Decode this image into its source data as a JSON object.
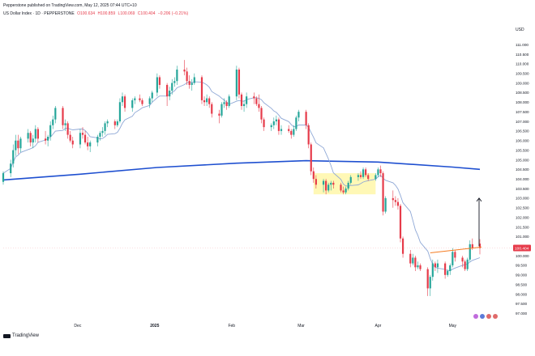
{
  "header": {
    "attribution": "Pepperstone published on TradingView.com, May 12, 2025 07:44 UTC+10",
    "symbol": "US Dollar Index · 1D · PEPPERSTONE",
    "ohlc": {
      "open": "O100.634",
      "high": "H100.859",
      "low": "L100.069",
      "close": "C100.404",
      "change": "−0.206 (−0.21%)"
    }
  },
  "branding": {
    "logo_text": "TradingView"
  },
  "colors": {
    "bull": "#26a69a",
    "bear": "#e63b4a",
    "ma_fast": "#8fa8d6",
    "ma_slow": "#1e4fd0",
    "resistance": "#f57c22",
    "range_box": "#fff59d",
    "price_tag": "#e63b4a"
  },
  "chart_data": {
    "type": "candlestick",
    "currency": "USD",
    "y_ticks": [
      "111.000",
      "110.500",
      "110.000",
      "109.500",
      "109.000",
      "108.500",
      "108.000",
      "107.500",
      "107.000",
      "106.500",
      "106.000",
      "105.500",
      "105.000",
      "104.500",
      "104.000",
      "103.500",
      "103.000",
      "102.500",
      "102.000",
      "101.500",
      "101.000",
      "100.500",
      "100.000",
      "99.500",
      "99.000",
      "98.500",
      "98.000",
      "97.500",
      "97.000"
    ],
    "ylim": [
      96.8,
      111.3
    ],
    "x_labels": [
      "Dec",
      "2025",
      "Feb",
      "Mar",
      "Apr",
      "May"
    ],
    "current_price": "100.404",
    "candles": [
      {
        "d": "2024-11-01",
        "o": 103.85,
        "h": 104.4,
        "l": 103.7,
        "c": 104.3
      },
      {
        "d": "2024-11-04",
        "o": 104.3,
        "h": 105.0,
        "l": 104.1,
        "c": 104.8
      },
      {
        "d": "2024-11-05",
        "o": 104.8,
        "h": 105.8,
        "l": 104.6,
        "c": 105.5
      },
      {
        "d": "2024-11-06",
        "o": 105.5,
        "h": 106.3,
        "l": 105.2,
        "c": 106.0
      },
      {
        "d": "2024-11-07",
        "o": 106.0,
        "h": 106.3,
        "l": 105.3,
        "c": 105.6
      },
      {
        "d": "2024-11-08",
        "o": 105.6,
        "h": 106.2,
        "l": 105.4,
        "c": 106.1
      },
      {
        "d": "2024-11-11",
        "o": 106.1,
        "h": 106.6,
        "l": 105.9,
        "c": 106.4
      },
      {
        "d": "2024-11-12",
        "o": 106.4,
        "h": 106.5,
        "l": 105.7,
        "c": 105.9
      },
      {
        "d": "2024-11-13",
        "o": 105.9,
        "h": 106.3,
        "l": 105.6,
        "c": 106.1
      },
      {
        "d": "2024-11-14",
        "o": 106.1,
        "h": 106.8,
        "l": 105.9,
        "c": 106.6
      },
      {
        "d": "2024-11-15",
        "o": 106.6,
        "h": 106.7,
        "l": 105.9,
        "c": 106.1
      },
      {
        "d": "2024-11-18",
        "o": 106.1,
        "h": 106.5,
        "l": 105.8,
        "c": 106.0
      },
      {
        "d": "2024-11-19",
        "o": 106.0,
        "h": 106.3,
        "l": 105.7,
        "c": 106.2
      },
      {
        "d": "2024-11-20",
        "o": 106.2,
        "h": 107.0,
        "l": 106.0,
        "c": 106.8
      },
      {
        "d": "2024-11-21",
        "o": 106.8,
        "h": 107.3,
        "l": 106.6,
        "c": 107.1
      },
      {
        "d": "2024-11-22",
        "o": 107.1,
        "h": 107.8,
        "l": 106.9,
        "c": 107.7
      },
      {
        "d": "2024-11-25",
        "o": 107.7,
        "h": 107.8,
        "l": 106.6,
        "c": 106.8
      },
      {
        "d": "2024-11-26",
        "o": 106.8,
        "h": 107.1,
        "l": 106.5,
        "c": 106.9
      },
      {
        "d": "2024-11-27",
        "o": 106.9,
        "h": 107.0,
        "l": 106.1,
        "c": 106.3
      },
      {
        "d": "2024-11-28",
        "o": 106.3,
        "h": 106.5,
        "l": 105.9,
        "c": 106.0
      },
      {
        "d": "2024-11-29",
        "o": 106.0,
        "h": 106.2,
        "l": 105.6,
        "c": 105.8
      },
      {
        "d": "2024-12-02",
        "o": 105.8,
        "h": 106.6,
        "l": 105.6,
        "c": 106.4
      },
      {
        "d": "2024-12-03",
        "o": 106.4,
        "h": 106.7,
        "l": 106.1,
        "c": 106.3
      },
      {
        "d": "2024-12-04",
        "o": 106.3,
        "h": 106.5,
        "l": 105.8,
        "c": 105.9
      },
      {
        "d": "2024-12-05",
        "o": 105.9,
        "h": 106.2,
        "l": 105.5,
        "c": 105.7
      },
      {
        "d": "2024-12-06",
        "o": 105.7,
        "h": 106.0,
        "l": 105.4,
        "c": 105.9
      },
      {
        "d": "2024-12-09",
        "o": 105.9,
        "h": 106.3,
        "l": 105.7,
        "c": 106.2
      },
      {
        "d": "2024-12-10",
        "o": 106.2,
        "h": 106.5,
        "l": 106.0,
        "c": 106.4
      },
      {
        "d": "2024-12-11",
        "o": 106.4,
        "h": 106.7,
        "l": 106.2,
        "c": 106.5
      },
      {
        "d": "2024-12-12",
        "o": 106.5,
        "h": 107.0,
        "l": 106.3,
        "c": 106.9
      },
      {
        "d": "2024-12-13",
        "o": 106.9,
        "h": 107.1,
        "l": 106.7,
        "c": 107.0
      },
      {
        "d": "2024-12-16",
        "o": 107.0,
        "h": 107.1,
        "l": 106.6,
        "c": 106.8
      },
      {
        "d": "2024-12-17",
        "o": 106.8,
        "h": 107.1,
        "l": 106.7,
        "c": 107.0
      },
      {
        "d": "2024-12-18",
        "o": 107.0,
        "h": 108.2,
        "l": 106.9,
        "c": 108.0
      },
      {
        "d": "2024-12-19",
        "o": 108.0,
        "h": 108.5,
        "l": 107.8,
        "c": 108.3
      },
      {
        "d": "2024-12-20",
        "o": 108.3,
        "h": 108.4,
        "l": 107.5,
        "c": 107.7
      },
      {
        "d": "2024-12-23",
        "o": 107.7,
        "h": 108.2,
        "l": 107.5,
        "c": 108.1
      },
      {
        "d": "2024-12-24",
        "o": 108.1,
        "h": 108.3,
        "l": 107.9,
        "c": 108.2
      },
      {
        "d": "2024-12-26",
        "o": 108.2,
        "h": 108.4,
        "l": 108.0,
        "c": 108.1
      },
      {
        "d": "2024-12-27",
        "o": 108.1,
        "h": 108.2,
        "l": 107.8,
        "c": 107.9
      },
      {
        "d": "2024-12-30",
        "o": 107.9,
        "h": 108.3,
        "l": 107.7,
        "c": 108.2
      },
      {
        "d": "2024-12-31",
        "o": 108.2,
        "h": 108.6,
        "l": 108.0,
        "c": 108.5
      },
      {
        "d": "2025-01-02",
        "o": 108.5,
        "h": 109.5,
        "l": 108.3,
        "c": 109.3
      },
      {
        "d": "2025-01-03",
        "o": 109.3,
        "h": 109.4,
        "l": 108.7,
        "c": 108.9
      },
      {
        "d": "2025-01-06",
        "o": 108.9,
        "h": 109.0,
        "l": 107.8,
        "c": 108.3
      },
      {
        "d": "2025-01-07",
        "o": 108.3,
        "h": 108.8,
        "l": 108.1,
        "c": 108.6
      },
      {
        "d": "2025-01-08",
        "o": 108.6,
        "h": 109.2,
        "l": 108.4,
        "c": 109.0
      },
      {
        "d": "2025-01-09",
        "o": 109.0,
        "h": 109.3,
        "l": 108.8,
        "c": 109.1
      },
      {
        "d": "2025-01-10",
        "o": 109.1,
        "h": 109.9,
        "l": 108.9,
        "c": 109.7
      },
      {
        "d": "2025-01-13",
        "o": 109.7,
        "h": 110.2,
        "l": 109.4,
        "c": 109.6
      },
      {
        "d": "2025-01-14",
        "o": 109.6,
        "h": 109.8,
        "l": 108.9,
        "c": 109.1
      },
      {
        "d": "2025-01-15",
        "o": 109.1,
        "h": 109.4,
        "l": 108.7,
        "c": 108.9
      },
      {
        "d": "2025-01-16",
        "o": 108.9,
        "h": 109.2,
        "l": 108.6,
        "c": 109.0
      },
      {
        "d": "2025-01-17",
        "o": 109.0,
        "h": 109.5,
        "l": 108.9,
        "c": 109.3
      },
      {
        "d": "2025-01-20",
        "o": 109.3,
        "h": 109.4,
        "l": 107.9,
        "c": 108.1
      },
      {
        "d": "2025-01-21",
        "o": 108.1,
        "h": 108.3,
        "l": 107.8,
        "c": 108.0
      },
      {
        "d": "2025-01-22",
        "o": 108.0,
        "h": 108.4,
        "l": 107.8,
        "c": 108.2
      },
      {
        "d": "2025-01-23",
        "o": 108.2,
        "h": 108.3,
        "l": 107.7,
        "c": 107.9
      },
      {
        "d": "2025-01-24",
        "o": 107.9,
        "h": 108.0,
        "l": 107.2,
        "c": 107.4
      },
      {
        "d": "2025-01-27",
        "o": 107.4,
        "h": 107.6,
        "l": 106.9,
        "c": 107.3
      },
      {
        "d": "2025-01-28",
        "o": 107.3,
        "h": 108.0,
        "l": 107.2,
        "c": 107.9
      },
      {
        "d": "2025-01-29",
        "o": 107.9,
        "h": 108.2,
        "l": 107.7,
        "c": 108.0
      },
      {
        "d": "2025-01-30",
        "o": 108.0,
        "h": 108.1,
        "l": 107.6,
        "c": 107.8
      },
      {
        "d": "2025-01-31",
        "o": 107.8,
        "h": 108.4,
        "l": 107.7,
        "c": 108.3
      },
      {
        "d": "2025-02-03",
        "o": 108.3,
        "h": 109.9,
        "l": 108.1,
        "c": 109.7
      },
      {
        "d": "2025-02-04",
        "o": 109.7,
        "h": 109.8,
        "l": 108.2,
        "c": 108.4
      },
      {
        "d": "2025-02-05",
        "o": 108.4,
        "h": 108.5,
        "l": 107.6,
        "c": 107.8
      },
      {
        "d": "2025-02-06",
        "o": 107.8,
        "h": 108.1,
        "l": 107.5,
        "c": 107.9
      },
      {
        "d": "2025-02-07",
        "o": 107.9,
        "h": 108.5,
        "l": 107.7,
        "c": 108.3
      },
      {
        "d": "2025-02-10",
        "o": 108.3,
        "h": 108.5,
        "l": 107.9,
        "c": 108.2
      },
      {
        "d": "2025-02-11",
        "o": 108.2,
        "h": 108.3,
        "l": 107.8,
        "c": 107.9
      },
      {
        "d": "2025-02-12",
        "o": 107.9,
        "h": 108.4,
        "l": 107.5,
        "c": 107.7
      },
      {
        "d": "2025-02-13",
        "o": 107.7,
        "h": 107.8,
        "l": 106.9,
        "c": 107.1
      },
      {
        "d": "2025-02-14",
        "o": 107.1,
        "h": 107.2,
        "l": 106.5,
        "c": 106.7
      },
      {
        "d": "2025-02-17",
        "o": 106.7,
        "h": 106.9,
        "l": 106.5,
        "c": 106.8
      },
      {
        "d": "2025-02-18",
        "o": 106.8,
        "h": 107.2,
        "l": 106.6,
        "c": 107.0
      },
      {
        "d": "2025-02-19",
        "o": 107.0,
        "h": 107.3,
        "l": 106.8,
        "c": 107.1
      },
      {
        "d": "2025-02-20",
        "o": 107.1,
        "h": 107.2,
        "l": 106.3,
        "c": 106.5
      },
      {
        "d": "2025-02-21",
        "o": 106.5,
        "h": 106.8,
        "l": 106.3,
        "c": 106.6
      },
      {
        "d": "2025-02-24",
        "o": 106.6,
        "h": 106.8,
        "l": 106.4,
        "c": 106.5
      },
      {
        "d": "2025-02-25",
        "o": 106.5,
        "h": 106.6,
        "l": 106.1,
        "c": 106.3
      },
      {
        "d": "2025-02-26",
        "o": 106.3,
        "h": 106.8,
        "l": 106.2,
        "c": 106.6
      },
      {
        "d": "2025-02-27",
        "o": 106.6,
        "h": 107.3,
        "l": 106.5,
        "c": 107.2
      },
      {
        "d": "2025-02-28",
        "o": 107.2,
        "h": 107.6,
        "l": 107.0,
        "c": 107.5
      },
      {
        "d": "2025-03-03",
        "o": 107.5,
        "h": 107.6,
        "l": 106.6,
        "c": 106.8
      },
      {
        "d": "2025-03-04",
        "o": 106.8,
        "h": 106.9,
        "l": 105.6,
        "c": 105.8
      },
      {
        "d": "2025-03-05",
        "o": 105.8,
        "h": 105.9,
        "l": 104.2,
        "c": 104.4
      },
      {
        "d": "2025-03-06",
        "o": 104.4,
        "h": 104.6,
        "l": 103.8,
        "c": 104.0
      },
      {
        "d": "2025-03-07",
        "o": 104.0,
        "h": 104.2,
        "l": 103.5,
        "c": 103.7
      },
      {
        "d": "2025-03-10",
        "o": 103.7,
        "h": 104.0,
        "l": 103.3,
        "c": 103.9
      },
      {
        "d": "2025-03-11",
        "o": 103.9,
        "h": 104.0,
        "l": 103.2,
        "c": 103.4
      },
      {
        "d": "2025-03-12",
        "o": 103.4,
        "h": 103.8,
        "l": 103.3,
        "c": 103.7
      },
      {
        "d": "2025-03-13",
        "o": 103.7,
        "h": 103.9,
        "l": 103.4,
        "c": 103.8
      },
      {
        "d": "2025-03-14",
        "o": 103.8,
        "h": 103.9,
        "l": 103.5,
        "c": 103.7
      },
      {
        "d": "2025-03-17",
        "o": 103.7,
        "h": 103.8,
        "l": 103.3,
        "c": 103.4
      },
      {
        "d": "2025-03-18",
        "o": 103.4,
        "h": 103.6,
        "l": 103.2,
        "c": 103.3
      },
      {
        "d": "2025-03-19",
        "o": 103.3,
        "h": 103.6,
        "l": 103.2,
        "c": 103.5
      },
      {
        "d": "2025-03-20",
        "o": 103.5,
        "h": 103.9,
        "l": 103.4,
        "c": 103.8
      },
      {
        "d": "2025-03-21",
        "o": 103.8,
        "h": 104.2,
        "l": 103.7,
        "c": 104.1
      },
      {
        "d": "2025-03-24",
        "o": 104.1,
        "h": 104.3,
        "l": 103.9,
        "c": 104.2
      },
      {
        "d": "2025-03-25",
        "o": 104.2,
        "h": 104.4,
        "l": 104.0,
        "c": 104.1
      },
      {
        "d": "2025-03-26",
        "o": 104.1,
        "h": 104.6,
        "l": 104.0,
        "c": 104.5
      },
      {
        "d": "2025-03-27",
        "o": 104.5,
        "h": 104.6,
        "l": 104.1,
        "c": 104.2
      },
      {
        "d": "2025-03-28",
        "o": 104.2,
        "h": 104.3,
        "l": 103.9,
        "c": 104.0
      },
      {
        "d": "2025-03-31",
        "o": 104.0,
        "h": 104.3,
        "l": 103.9,
        "c": 104.2
      },
      {
        "d": "2025-04-01",
        "o": 104.2,
        "h": 104.6,
        "l": 104.1,
        "c": 104.5
      },
      {
        "d": "2025-04-02",
        "o": 104.5,
        "h": 104.7,
        "l": 104.1,
        "c": 104.3
      },
      {
        "d": "2025-04-03",
        "o": 104.3,
        "h": 104.4,
        "l": 102.1,
        "c": 102.3
      },
      {
        "d": "2025-04-04",
        "o": 102.3,
        "h": 103.1,
        "l": 102.2,
        "c": 103.0
      },
      {
        "d": "2025-04-07",
        "o": 103.0,
        "h": 103.4,
        "l": 102.5,
        "c": 102.9
      },
      {
        "d": "2025-04-08",
        "o": 102.9,
        "h": 103.1,
        "l": 102.6,
        "c": 102.8
      },
      {
        "d": "2025-04-09",
        "o": 102.8,
        "h": 103.0,
        "l": 102.4,
        "c": 102.6
      },
      {
        "d": "2025-04-10",
        "o": 102.6,
        "h": 102.7,
        "l": 100.7,
        "c": 100.9
      },
      {
        "d": "2025-04-11",
        "o": 100.9,
        "h": 101.0,
        "l": 99.9,
        "c": 100.1
      },
      {
        "d": "2025-04-14",
        "o": 100.1,
        "h": 100.3,
        "l": 99.4,
        "c": 99.6
      },
      {
        "d": "2025-04-15",
        "o": 99.6,
        "h": 100.1,
        "l": 99.5,
        "c": 99.9
      },
      {
        "d": "2025-04-16",
        "o": 99.9,
        "h": 100.0,
        "l": 99.2,
        "c": 99.4
      },
      {
        "d": "2025-04-17",
        "o": 99.4,
        "h": 99.7,
        "l": 99.3,
        "c": 99.5
      },
      {
        "d": "2025-04-18",
        "o": 99.5,
        "h": 99.6,
        "l": 99.2,
        "c": 99.3
      },
      {
        "d": "2025-04-21",
        "o": 99.3,
        "h": 99.4,
        "l": 97.9,
        "c": 98.3
      },
      {
        "d": "2025-04-22",
        "o": 98.3,
        "h": 99.0,
        "l": 97.9,
        "c": 98.9
      },
      {
        "d": "2025-04-23",
        "o": 98.9,
        "h": 99.8,
        "l": 98.7,
        "c": 99.6
      },
      {
        "d": "2025-04-24",
        "o": 99.6,
        "h": 99.7,
        "l": 99.2,
        "c": 99.4
      },
      {
        "d": "2025-04-25",
        "o": 99.4,
        "h": 99.8,
        "l": 99.1,
        "c": 99.6
      },
      {
        "d": "2025-04-28",
        "o": 99.6,
        "h": 99.7,
        "l": 98.8,
        "c": 99.0
      },
      {
        "d": "2025-04-29",
        "o": 99.0,
        "h": 99.3,
        "l": 98.9,
        "c": 99.2
      },
      {
        "d": "2025-04-30",
        "o": 99.2,
        "h": 99.6,
        "l": 99.0,
        "c": 99.5
      },
      {
        "d": "2025-05-01",
        "o": 99.5,
        "h": 100.4,
        "l": 99.4,
        "c": 100.2
      },
      {
        "d": "2025-05-02",
        "o": 100.2,
        "h": 100.3,
        "l": 99.7,
        "c": 99.9
      },
      {
        "d": "2025-05-05",
        "o": 99.9,
        "h": 100.0,
        "l": 99.4,
        "c": 99.7
      },
      {
        "d": "2025-05-06",
        "o": 99.7,
        "h": 99.8,
        "l": 99.2,
        "c": 99.3
      },
      {
        "d": "2025-05-07",
        "o": 99.3,
        "h": 99.9,
        "l": 99.2,
        "c": 99.8
      },
      {
        "d": "2025-05-08",
        "o": 99.8,
        "h": 100.8,
        "l": 99.7,
        "c": 100.6
      },
      {
        "d": "2025-05-09",
        "o": 100.6,
        "h": 100.9,
        "l": 100.3,
        "c": 100.4
      },
      {
        "d": "2025-05-12",
        "o": 100.63,
        "h": 100.86,
        "l": 100.07,
        "c": 100.4
      }
    ],
    "ma_slow": [
      {
        "d": "2024-11-01",
        "v": 103.95
      },
      {
        "d": "2024-12-02",
        "v": 104.25
      },
      {
        "d": "2025-01-02",
        "v": 104.6
      },
      {
        "d": "2025-02-03",
        "v": 104.82
      },
      {
        "d": "2025-03-03",
        "v": 104.95
      },
      {
        "d": "2025-04-01",
        "v": 104.88
      },
      {
        "d": "2025-05-01",
        "v": 104.62
      },
      {
        "d": "2025-05-12",
        "v": 104.5
      }
    ],
    "ma_fast_period": 10,
    "annotations": {
      "range_box": {
        "d0": "2025-03-06",
        "d1": "2025-03-31",
        "y0": 103.2,
        "y1": 104.3
      },
      "resistance_line": {
        "d0": "2025-04-22",
        "d1": "2025-05-12",
        "y0": 100.15,
        "y1": 100.45
      },
      "arrow": {
        "d": "2025-05-12",
        "y0": 100.5,
        "y1": 103.0
      }
    }
  }
}
